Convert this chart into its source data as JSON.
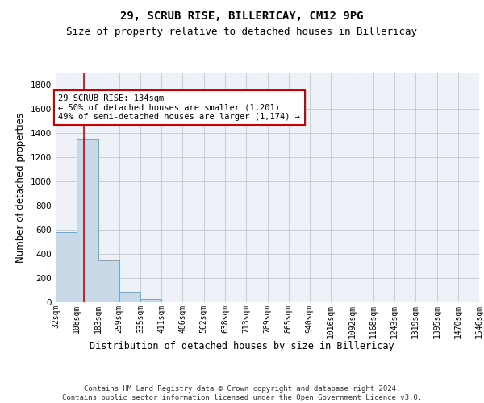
{
  "title1": "29, SCRUB RISE, BILLERICAY, CM12 9PG",
  "title2": "Size of property relative to detached houses in Billericay",
  "xlabel": "Distribution of detached houses by size in Billericay",
  "ylabel": "Number of detached properties",
  "footer1": "Contains HM Land Registry data © Crown copyright and database right 2024.",
  "footer2": "Contains public sector information licensed under the Open Government Licence v3.0.",
  "annotation_line1": "29 SCRUB RISE: 134sqm",
  "annotation_line2": "← 50% of detached houses are smaller (1,201)",
  "annotation_line3": "49% of semi-detached houses are larger (1,174) →",
  "bar_edges": [
    32,
    108,
    183,
    259,
    335,
    411,
    486,
    562,
    638,
    713,
    789,
    865,
    940,
    1016,
    1092,
    1168,
    1243,
    1319,
    1395,
    1470,
    1546
  ],
  "bar_heights": [
    580,
    1350,
    350,
    88,
    30,
    0,
    0,
    0,
    0,
    0,
    0,
    0,
    0,
    0,
    0,
    0,
    0,
    0,
    0,
    0
  ],
  "property_size": 134,
  "bar_color": "#c9d9e8",
  "bar_edge_color": "#6fa8c9",
  "vline_color": "#cc0000",
  "vline_x": 134,
  "annotation_box_edge": "#cc0000",
  "ylim": [
    0,
    1900
  ],
  "yticks": [
    0,
    200,
    400,
    600,
    800,
    1000,
    1200,
    1400,
    1600,
    1800
  ],
  "grid_color": "#cccccc",
  "bg_color": "#eef2f8",
  "title1_fontsize": 10,
  "title2_fontsize": 9,
  "xlabel_fontsize": 8.5,
  "ylabel_fontsize": 8.5,
  "tick_fontsize": 7.5,
  "annotation_fontsize": 7.5,
  "footer_fontsize": 6.5
}
